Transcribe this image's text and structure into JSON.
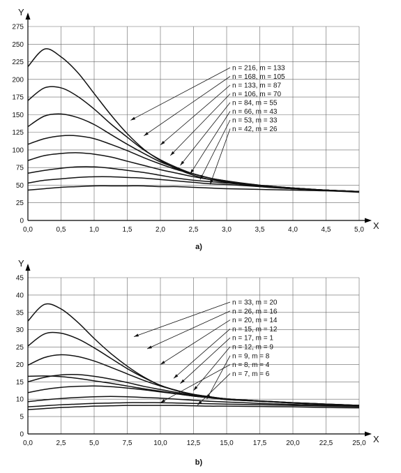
{
  "chart_data": [
    {
      "type": "line",
      "caption": "a)",
      "xlabel": "X",
      "ylabel": "Y",
      "xlim": [
        0,
        5
      ],
      "ylim": [
        0,
        275
      ],
      "grid": true,
      "x_ticks": [
        "0,0",
        "0,5",
        "1,0",
        "1,5",
        "2,0",
        "2,5",
        "3,0",
        "3,5",
        "4,0",
        "4,5",
        "5,0"
      ],
      "y_ticks": [
        "0",
        "25",
        "50",
        "75",
        "100",
        "125",
        "150",
        "175",
        "200",
        "225",
        "250",
        "275"
      ],
      "x": [
        0,
        0.25,
        0.5,
        0.75,
        1.0,
        1.25,
        1.5,
        1.75,
        2.0,
        2.25,
        2.5,
        2.75,
        3.0,
        3.5,
        4.0,
        4.5,
        5.0
      ],
      "series": [
        {
          "label": "n = 216, m = 133",
          "values": [
            218,
            243,
            232,
            210,
            180,
            150,
            123,
            101,
            85,
            73,
            64,
            58,
            54,
            48,
            45,
            43,
            41
          ],
          "label_target": [
            1.55,
            142
          ]
        },
        {
          "label": "n = 168, m = 105",
          "values": [
            170,
            188,
            188,
            176,
            158,
            137,
            118,
            100,
            86,
            75,
            66,
            60,
            55,
            49,
            45,
            43,
            41
          ],
          "label_target": [
            1.75,
            120
          ]
        },
        {
          "label": "n = 133, m = 87",
          "values": [
            133,
            148,
            151,
            146,
            136,
            122,
            108,
            95,
            83,
            74,
            66,
            60,
            56,
            49,
            46,
            43,
            41
          ],
          "label_target": [
            2.0,
            107
          ]
        },
        {
          "label": "n = 106, m = 70",
          "values": [
            108,
            116,
            120,
            120,
            116,
            108,
            99,
            89,
            80,
            72,
            66,
            60,
            56,
            50,
            46,
            43,
            41
          ],
          "label_target": [
            2.15,
            92
          ]
        },
        {
          "label": "n = 84, m = 55",
          "values": [
            85,
            92,
            95,
            96,
            94,
            90,
            84,
            78,
            72,
            67,
            62,
            58,
            55,
            50,
            46,
            43,
            41
          ],
          "label_target": [
            2.3,
            78
          ]
        },
        {
          "label": "n = 66, m = 43",
          "values": [
            67,
            71,
            74,
            76,
            76,
            74,
            71,
            68,
            64,
            60,
            57,
            55,
            53,
            49,
            46,
            43,
            41
          ],
          "label_target": [
            2.45,
            66
          ]
        },
        {
          "label": "n = 53, m = 33",
          "values": [
            53,
            57,
            59,
            61,
            62,
            62,
            61,
            60,
            58,
            56,
            54,
            52,
            51,
            48,
            45,
            43,
            41
          ],
          "label_target": [
            2.6,
            58
          ]
        },
        {
          "label": "n = 42, m = 26",
          "values": [
            43,
            45,
            47,
            48,
            49,
            49,
            49,
            49,
            48,
            48,
            47,
            46,
            45,
            44,
            43,
            42,
            40
          ],
          "label_target": [
            2.75,
            51
          ]
        }
      ]
    },
    {
      "type": "line",
      "caption": "b)",
      "xlabel": "X",
      "ylabel": "Y",
      "xlim": [
        0,
        25
      ],
      "ylim": [
        0,
        45
      ],
      "grid": true,
      "x_ticks": [
        "0,0",
        "2,5",
        "5,0",
        "7,5",
        "10,0",
        "12,5",
        "15,0",
        "17,5",
        "20,0",
        "22,5",
        "25,0"
      ],
      "y_ticks": [
        "0",
        "5",
        "10",
        "15",
        "20",
        "25",
        "30",
        "35",
        "40",
        "45"
      ],
      "x": [
        0,
        1.25,
        2.5,
        3.75,
        5.0,
        6.25,
        7.5,
        8.75,
        10.0,
        11.25,
        12.5,
        13.75,
        15.0,
        17.5,
        20.0,
        22.5,
        25.0
      ],
      "series": [
        {
          "label": "n = 33, m = 20",
          "values": [
            32.5,
            37.3,
            36.0,
            32.2,
            27.5,
            23.2,
            19.5,
            16.4,
            14.0,
            12.4,
            11.3,
            10.6,
            10.1,
            9.5,
            9.0,
            8.6,
            8.2
          ],
          "label_target": [
            8.0,
            28
          ]
        },
        {
          "label": "n = 26, m = 16",
          "values": [
            25.3,
            28.8,
            29.0,
            27.4,
            24.8,
            21.8,
            18.8,
            16.2,
            14.0,
            12.5,
            11.4,
            10.7,
            10.1,
            9.5,
            9.0,
            8.6,
            8.2
          ],
          "label_target": [
            9.0,
            24.5
          ]
        },
        {
          "label": "n = 20, m = 14",
          "values": [
            19.8,
            22.0,
            22.8,
            22.3,
            21.0,
            19.2,
            17.3,
            15.4,
            13.8,
            12.5,
            11.4,
            10.7,
            10.1,
            9.5,
            9.0,
            8.6,
            8.2
          ],
          "label_target": [
            10.0,
            20
          ]
        },
        {
          "label": "n = 15, m = 12",
          "values": [
            15.0,
            16.3,
            17.0,
            17.1,
            16.6,
            15.8,
            14.8,
            13.7,
            12.8,
            11.9,
            11.1,
            10.5,
            10.0,
            9.4,
            8.9,
            8.5,
            8.2
          ],
          "label_target": [
            11.0,
            16
          ]
        },
        {
          "label": "n = 17, m = 1",
          "values": [
            16.6,
            16.7,
            16.5,
            16.0,
            15.3,
            14.6,
            13.8,
            13.0,
            12.3,
            11.6,
            10.9,
            10.4,
            9.9,
            9.4,
            8.9,
            8.5,
            8.2
          ],
          "label_target": [
            11.5,
            14.5
          ]
        },
        {
          "label": "n = 12, m = 9",
          "values": [
            11.9,
            12.8,
            13.4,
            13.7,
            13.8,
            13.6,
            13.2,
            12.7,
            12.1,
            11.5,
            10.9,
            10.4,
            9.9,
            9.4,
            8.9,
            8.5,
            8.1
          ],
          "label_target": [
            12.5,
            12.5
          ]
        },
        {
          "label": "n = 9, m = 8",
          "values": [
            9.3,
            9.8,
            10.2,
            10.5,
            10.7,
            10.8,
            10.7,
            10.5,
            10.3,
            10.0,
            9.7,
            9.4,
            9.2,
            8.8,
            8.5,
            8.2,
            7.9
          ],
          "label_target": [
            13.5,
            10
          ]
        },
        {
          "label": "n = 8, m = 4",
          "values": [
            7.8,
            8.1,
            8.4,
            8.6,
            8.8,
            8.9,
            9.0,
            9.0,
            9.0,
            8.9,
            8.8,
            8.7,
            8.6,
            8.4,
            8.2,
            8.0,
            7.8
          ],
          "label_target": [
            10.0,
            9.0
          ]
        },
        {
          "label": "n = 7, m = 6",
          "values": [
            7.0,
            7.3,
            7.6,
            7.8,
            8.0,
            8.1,
            8.2,
            8.2,
            8.2,
            8.2,
            8.1,
            8.0,
            8.0,
            7.9,
            7.8,
            7.6,
            7.5
          ],
          "label_target": [
            12.8,
            8.3
          ]
        }
      ]
    }
  ]
}
